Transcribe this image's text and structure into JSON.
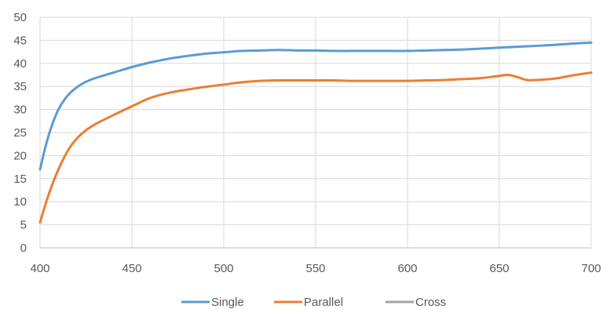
{
  "chart_data": {
    "type": "line",
    "title": "",
    "xlabel": "",
    "ylabel": "",
    "xlim": [
      400,
      700
    ],
    "ylim": [
      0,
      50
    ],
    "x_ticks": [
      "400",
      "450",
      "500",
      "550",
      "600",
      "650",
      "700"
    ],
    "y_ticks": [
      "0",
      "5",
      "10",
      "15",
      "20",
      "25",
      "30",
      "35",
      "40",
      "45",
      "50"
    ],
    "grid": true,
    "legend_position": "bottom",
    "series": [
      {
        "name": "Single",
        "color": "#5B9BD5",
        "points": [
          [
            400,
            17
          ],
          [
            403,
            22
          ],
          [
            406,
            26
          ],
          [
            410,
            30
          ],
          [
            415,
            33
          ],
          [
            420,
            34.8
          ],
          [
            425,
            36
          ],
          [
            430,
            36.8
          ],
          [
            440,
            38
          ],
          [
            450,
            39.2
          ],
          [
            460,
            40.2
          ],
          [
            470,
            41
          ],
          [
            480,
            41.6
          ],
          [
            490,
            42.1
          ],
          [
            500,
            42.4
          ],
          [
            510,
            42.7
          ],
          [
            520,
            42.8
          ],
          [
            530,
            42.9
          ],
          [
            540,
            42.8
          ],
          [
            550,
            42.8
          ],
          [
            560,
            42.7
          ],
          [
            570,
            42.7
          ],
          [
            580,
            42.7
          ],
          [
            590,
            42.7
          ],
          [
            600,
            42.7
          ],
          [
            610,
            42.8
          ],
          [
            620,
            42.9
          ],
          [
            630,
            43.0
          ],
          [
            640,
            43.2
          ],
          [
            650,
            43.4
          ],
          [
            660,
            43.6
          ],
          [
            670,
            43.8
          ],
          [
            680,
            44.0
          ],
          [
            690,
            44.3
          ],
          [
            700,
            44.5
          ]
        ]
      },
      {
        "name": "Parallel",
        "color": "#ED7D31",
        "points": [
          [
            400,
            5.5
          ],
          [
            403,
            9.5
          ],
          [
            406,
            13
          ],
          [
            410,
            17
          ],
          [
            415,
            21
          ],
          [
            420,
            23.7
          ],
          [
            425,
            25.5
          ],
          [
            430,
            26.8
          ],
          [
            440,
            28.8
          ],
          [
            450,
            30.7
          ],
          [
            460,
            32.5
          ],
          [
            470,
            33.6
          ],
          [
            480,
            34.3
          ],
          [
            490,
            34.9
          ],
          [
            500,
            35.4
          ],
          [
            510,
            35.9
          ],
          [
            520,
            36.2
          ],
          [
            530,
            36.3
          ],
          [
            540,
            36.3
          ],
          [
            550,
            36.3
          ],
          [
            560,
            36.3
          ],
          [
            570,
            36.2
          ],
          [
            580,
            36.2
          ],
          [
            590,
            36.2
          ],
          [
            600,
            36.2
          ],
          [
            610,
            36.3
          ],
          [
            620,
            36.4
          ],
          [
            630,
            36.6
          ],
          [
            640,
            36.8
          ],
          [
            650,
            37.3
          ],
          [
            655,
            37.5
          ],
          [
            660,
            37.0
          ],
          [
            665,
            36.4
          ],
          [
            670,
            36.4
          ],
          [
            680,
            36.7
          ],
          [
            690,
            37.4
          ],
          [
            700,
            38.0
          ]
        ]
      },
      {
        "name": "Cross",
        "color": "#A5A5A5",
        "points": []
      }
    ]
  }
}
